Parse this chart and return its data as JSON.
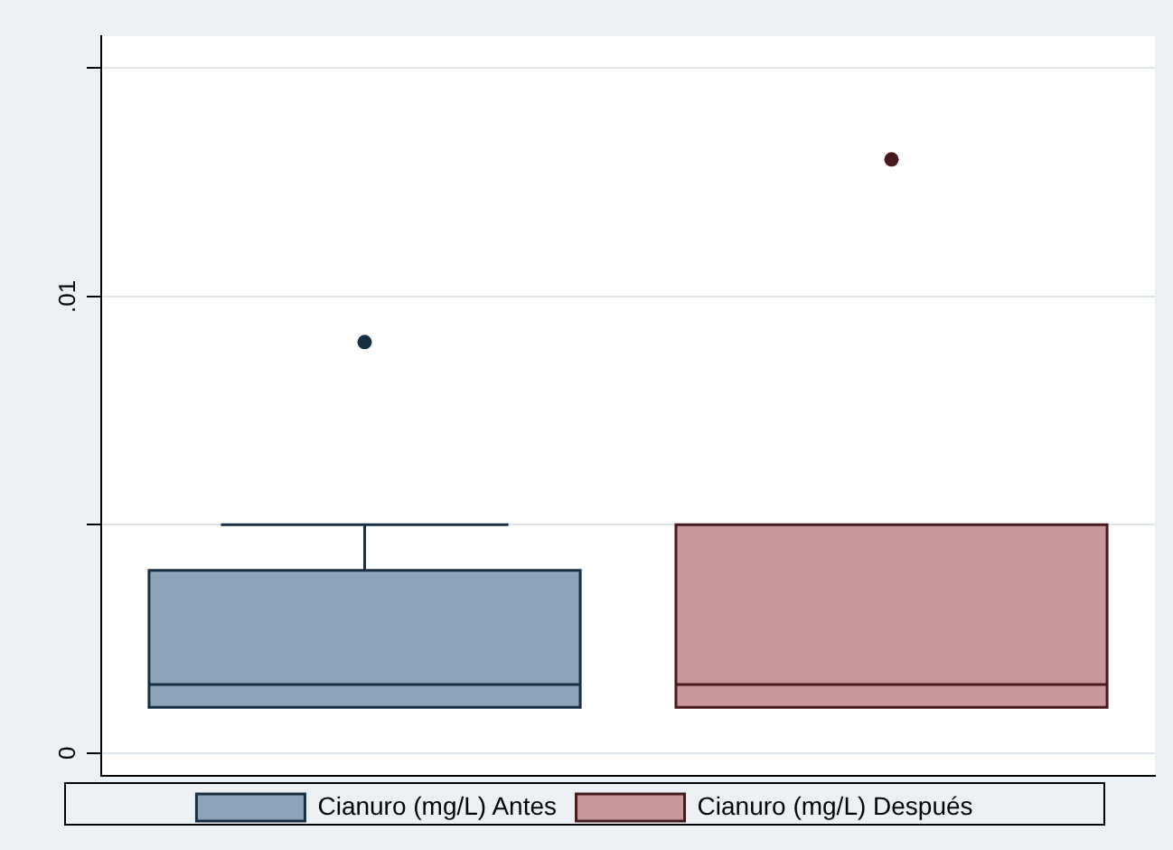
{
  "chart_data": {
    "type": "box",
    "categories": [
      null,
      null
    ],
    "series": [
      {
        "name": "Cianuro (mg/L) Antes",
        "color": "#8ca3b8",
        "boxes": [
          {
            "low": 0.001,
            "q1": 0.001,
            "median": 0.0015,
            "q3": 0.004,
            "high": 0.005,
            "outliers": [
              0.009
            ]
          },
          null
        ]
      },
      {
        "name": "Cianuro (mg/L) Después",
        "color": "#c8979a",
        "boxes": [
          null,
          {
            "low": 0.001,
            "q1": 0.001,
            "median": 0.0015,
            "q3": 0.005,
            "high": 0.005,
            "outliers": [
              0.013
            ]
          }
        ]
      }
    ],
    "ylim": [
      -0.0005,
      0.0157
    ],
    "yticks": [
      0,
      {
        "value": 0.005,
        "label": null
      },
      {
        "value": 0.01,
        "label": ".01"
      },
      {
        "value": 0.015,
        "label": null
      }
    ],
    "grid": "y",
    "legend": "bottom",
    "marker": "circle"
  }
}
